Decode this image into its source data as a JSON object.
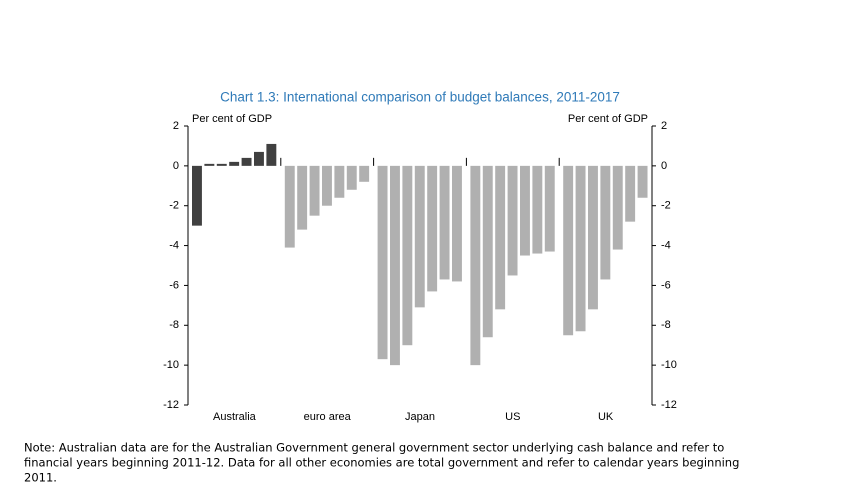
{
  "chart_data": {
    "type": "bar",
    "title": "Chart 1.3: International comparison of budget balances, 2011-2017",
    "y_label": "Per cent of GDP",
    "y2_label": "Per cent of GDP",
    "ylim": [
      -12,
      2
    ],
    "yticks": [
      2,
      0,
      -2,
      -4,
      -6,
      -8,
      -10,
      -12
    ],
    "y2lim": [
      -12,
      2
    ],
    "y2ticks": [
      2,
      0,
      -2,
      -4,
      -6,
      -8,
      -10,
      -12
    ],
    "groups": [
      {
        "label": "Australia",
        "color": "#404040",
        "values": [
          -3.0,
          0.1,
          0.1,
          0.2,
          0.4,
          0.7,
          1.1
        ]
      },
      {
        "label": "euro area",
        "color": "#b0b0b0",
        "values": [
          -4.1,
          -3.2,
          -2.5,
          -2.0,
          -1.6,
          -1.2,
          -0.8
        ]
      },
      {
        "label": "Japan",
        "color": "#b0b0b0",
        "values": [
          -9.7,
          -10.0,
          -9.0,
          -7.1,
          -6.3,
          -5.7,
          -5.8
        ]
      },
      {
        "label": "US",
        "color": "#b0b0b0",
        "values": [
          -10.0,
          -8.6,
          -7.2,
          -5.5,
          -4.5,
          -4.4,
          -4.3
        ]
      },
      {
        "label": "UK",
        "color": "#b0b0b0",
        "values": [
          -8.5,
          -8.3,
          -7.2,
          -5.7,
          -4.2,
          -2.8,
          -1.6
        ]
      }
    ],
    "note_lines": [
      "Note: Australian data are for the Australian Government general government sector underlying cash balance and refer to",
      "financial years beginning 2011-12. Data for all other economies are total government and refer to calendar years beginning",
      "2011."
    ]
  }
}
